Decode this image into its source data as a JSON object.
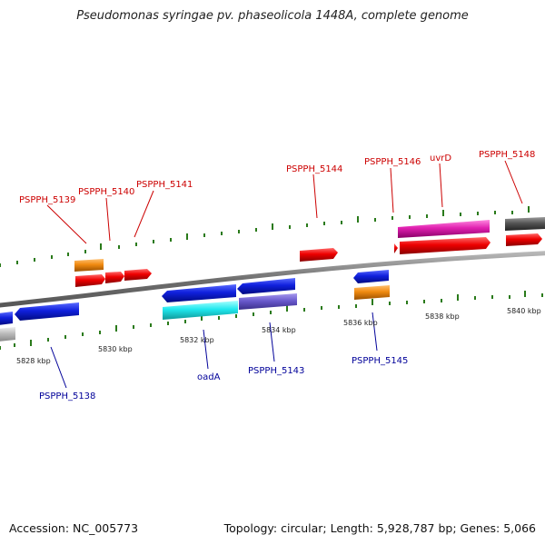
{
  "title": "Pseudomonas syringae pv. phaseolicola 1448A, complete genome",
  "footer": {
    "accession": "Accession: NC_005773",
    "summary": "Topology: circular; Length: 5,928,787 bp; Genes: 5,066"
  },
  "colors": {
    "label_upper": "#cc0000",
    "label_lower": "#000099",
    "backbone": "#777777",
    "tick": "#2a7a1a"
  },
  "scale_labels": [
    "5828 kbp",
    "5830 kbp",
    "5832 kbp",
    "5834 kbp",
    "5836 kbp",
    "5838 kbp",
    "5840 kbp"
  ],
  "gene_labels_upper": [
    "PSPPH_5139",
    "PSPPH_5140",
    "PSPPH_5141",
    "PSPPH_5144",
    "PSPPH_5146",
    "uvrD",
    "PSPPH_5148"
  ],
  "gene_labels_lower": [
    "PSPPH_5138",
    "oadA",
    "PSPPH_5143",
    "PSPPH_5145"
  ]
}
